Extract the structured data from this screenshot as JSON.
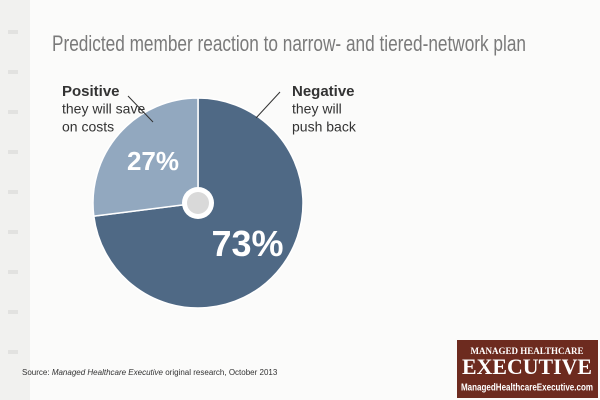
{
  "chart_data": {
    "type": "pie",
    "title": "Predicted member reaction to narrow- and tiered-network plan",
    "categories": [
      "Negative",
      "Positive"
    ],
    "descriptions": [
      [
        "they will",
        "push back"
      ],
      [
        "they will save",
        "on costs"
      ]
    ],
    "values": [
      73,
      27
    ],
    "value_labels": [
      "73%",
      "27%"
    ],
    "colors": [
      "#4f6985",
      "#92a8bf"
    ],
    "source": [
      "Source:",
      "Managed Healthcare Executive",
      "original research, October 2013"
    ],
    "logo": {
      "top": "Managed Healthcare",
      "main": "Executive",
      "url": "ManagedHealthcareExecutive.com"
    }
  }
}
